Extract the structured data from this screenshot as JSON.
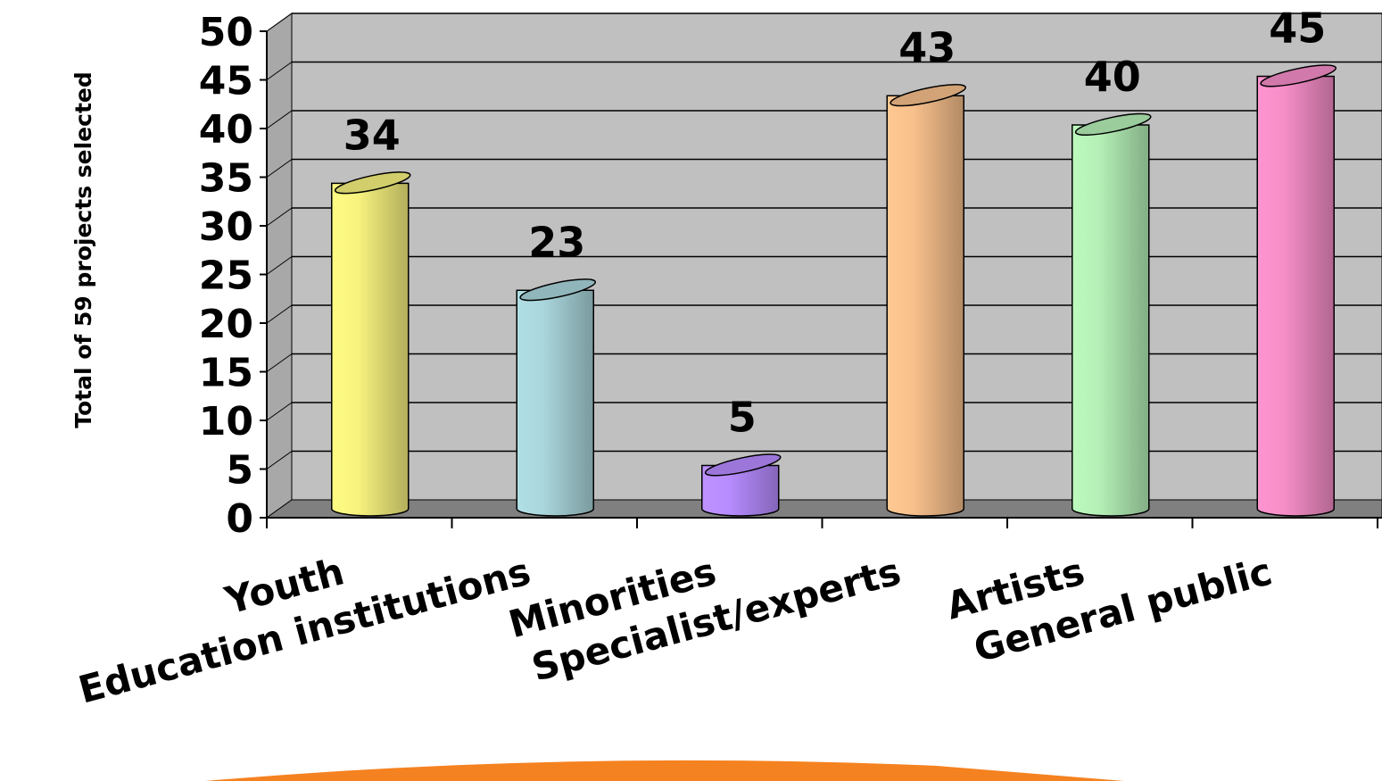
{
  "chart_data": {
    "type": "bar",
    "categories": [
      "Youth",
      "Education institutions",
      "Minorities",
      "Specialist/experts",
      "Artists",
      "General public"
    ],
    "values": [
      34,
      23,
      5,
      43,
      40,
      45
    ],
    "data_labels": [
      "34",
      "23",
      "5",
      "43",
      "40",
      "45"
    ],
    "title": "",
    "xlabel": "",
    "ylabel": "Total of 59 projects selected",
    "ylim": [
      0,
      50
    ],
    "yticks": [
      "0",
      "5",
      "10",
      "15",
      "20",
      "25",
      "30",
      "35",
      "40",
      "45",
      "50"
    ],
    "grid": true,
    "bar_shape": "3d-cylinder",
    "colors": [
      "#f7f27e",
      "#a9d6dc",
      "#b78cff",
      "#f7c08c",
      "#b5f0b7",
      "#f68ec8"
    ],
    "plot_background": "#c0c0c0",
    "floor_color": "#808080"
  }
}
